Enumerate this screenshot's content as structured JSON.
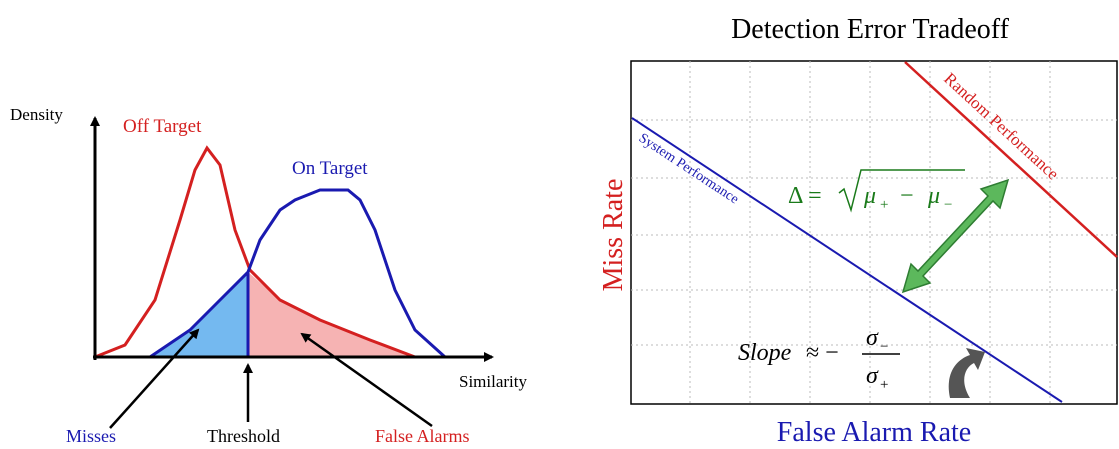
{
  "left": {
    "y_axis": "Density",
    "x_axis": "Similarity",
    "off_target": "Off Target",
    "on_target": "On Target",
    "misses": "Misses",
    "threshold": "Threshold",
    "false_alarms": "False Alarms"
  },
  "right": {
    "title": "Detection Error Tradeoff",
    "y_axis": "Miss Rate",
    "x_axis": "False Alarm Rate",
    "system": "System Performance",
    "random": "Random Performance",
    "delta": {
      "lhs": "Δ =",
      "mu": "μ",
      "plus": "+",
      "minus": "−",
      "sub_minus": "−"
    },
    "slope": {
      "lhs": "Slope",
      "approx": "≈ −",
      "sigma": "σ",
      "sub_minus": "−",
      "sub_plus": "+"
    }
  }
}
